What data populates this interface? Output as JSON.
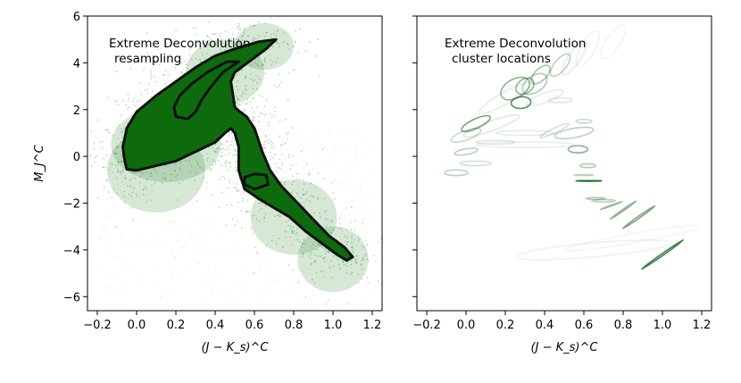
{
  "chart_data": [
    {
      "type": "scatter",
      "subtype": "density-contour",
      "annotation_line1": "Extreme Deconvolution",
      "annotation_line2": "resampling",
      "xlabel": "(J − K_s)^C",
      "ylabel": "M_J^C",
      "xlim": [
        -0.25,
        1.25
      ],
      "ylim": [
        6,
        -6.6
      ],
      "xticks": [
        -0.2,
        0.0,
        0.2,
        0.4,
        0.6,
        0.8,
        1.0,
        1.2
      ],
      "xtick_labels": [
        "−0.2",
        "0.0",
        "0.2",
        "0.4",
        "0.6",
        "0.8",
        "1.0",
        "1.2"
      ],
      "yticks": [
        -6,
        -4,
        -2,
        0,
        2,
        4,
        6
      ],
      "ytick_labels": [
        "−6",
        "−4",
        "−2",
        "0",
        "2",
        "4",
        "6"
      ],
      "point_color": "#1a7a1a",
      "fill_color": "#0d6b0d",
      "contour_color": "#111111",
      "contours": [
        {
          "name": "outer",
          "points": [
            [
              -0.05,
              -0.55
            ],
            [
              0.0,
              -0.6
            ],
            [
              0.1,
              -0.4
            ],
            [
              0.2,
              -0.2
            ],
            [
              0.3,
              0.2
            ],
            [
              0.4,
              0.6
            ],
            [
              0.45,
              1.0
            ],
            [
              0.48,
              1.2
            ],
            [
              0.5,
              1.0
            ],
            [
              0.52,
              0.4
            ],
            [
              0.52,
              -0.6
            ],
            [
              0.55,
              -1.4
            ],
            [
              0.62,
              -1.8
            ],
            [
              0.7,
              -2.2
            ],
            [
              0.78,
              -2.6
            ],
            [
              0.86,
              -3.2
            ],
            [
              0.94,
              -3.7
            ],
            [
              1.02,
              -4.2
            ],
            [
              1.07,
              -4.45
            ],
            [
              1.1,
              -4.3
            ],
            [
              1.06,
              -3.9
            ],
            [
              0.98,
              -3.4
            ],
            [
              0.9,
              -2.7
            ],
            [
              0.82,
              -2.0
            ],
            [
              0.74,
              -1.3
            ],
            [
              0.68,
              -0.6
            ],
            [
              0.64,
              0.2
            ],
            [
              0.6,
              1.2
            ],
            [
              0.56,
              1.7
            ],
            [
              0.52,
              1.95
            ],
            [
              0.5,
              2.1
            ],
            [
              0.48,
              3.2
            ],
            [
              0.5,
              3.6
            ],
            [
              0.58,
              4.1
            ],
            [
              0.66,
              4.6
            ],
            [
              0.71,
              5.0
            ],
            [
              0.62,
              4.9
            ],
            [
              0.5,
              4.6
            ],
            [
              0.4,
              4.3
            ],
            [
              0.3,
              3.8
            ],
            [
              0.2,
              3.2
            ],
            [
              0.1,
              2.6
            ],
            [
              0.0,
              1.9
            ],
            [
              -0.05,
              1.2
            ],
            [
              -0.07,
              0.4
            ],
            [
              -0.06,
              -0.2
            ],
            [
              -0.05,
              -0.55
            ]
          ]
        },
        {
          "name": "inner-bottom",
          "points": [
            [
              0.2,
              1.7
            ],
            [
              0.26,
              1.6
            ],
            [
              0.3,
              1.9
            ],
            [
              0.33,
              2.4
            ],
            [
              0.38,
              3.0
            ],
            [
              0.44,
              3.6
            ],
            [
              0.52,
              4.05
            ],
            [
              0.46,
              4.05
            ],
            [
              0.36,
              3.6
            ],
            [
              0.28,
              3.1
            ],
            [
              0.22,
              2.6
            ],
            [
              0.19,
              2.1
            ],
            [
              0.2,
              1.7
            ]
          ]
        },
        {
          "name": "inner-clump",
          "points": [
            [
              0.55,
              -1.2
            ],
            [
              0.6,
              -1.4
            ],
            [
              0.67,
              -1.2
            ],
            [
              0.66,
              -0.8
            ],
            [
              0.6,
              -0.75
            ],
            [
              0.55,
              -0.9
            ],
            [
              0.55,
              -1.2
            ]
          ]
        }
      ]
    },
    {
      "type": "scatter",
      "subtype": "gaussian-ellipses",
      "annotation_line1": "Extreme Deconvolution",
      "annotation_line2": "cluster locations",
      "xlabel": "(J − K_s)^C",
      "xlim": [
        -0.25,
        1.25
      ],
      "ylim": [
        6,
        -6.6
      ],
      "xticks": [
        -0.2,
        0.0,
        0.2,
        0.4,
        0.6,
        0.8,
        1.0,
        1.2
      ],
      "xtick_labels": [
        "−0.2",
        "0.0",
        "0.2",
        "0.4",
        "0.6",
        "0.8",
        "1.0",
        "1.2"
      ],
      "ellipse_color": "#1f6b2a",
      "ellipses": [
        {
          "cx": 0.65,
          "cy": -4.0,
          "rx": 0.4,
          "ry": 0.3,
          "angle": -5,
          "opacity": 0.08
        },
        {
          "cx": 0.85,
          "cy": -3.5,
          "rx": 0.35,
          "ry": 0.2,
          "angle": -10,
          "opacity": 0.06
        },
        {
          "cx": 1.0,
          "cy": -4.2,
          "rx": 0.13,
          "ry": 0.04,
          "angle": -35,
          "opacity": 0.85
        },
        {
          "cx": 0.88,
          "cy": -2.6,
          "rx": 0.1,
          "ry": 0.04,
          "angle": -35,
          "opacity": 0.6
        },
        {
          "cx": 0.8,
          "cy": -2.3,
          "rx": 0.08,
          "ry": 0.03,
          "angle": -35,
          "opacity": 0.5
        },
        {
          "cx": 0.74,
          "cy": -2.1,
          "rx": 0.06,
          "ry": 0.02,
          "angle": -20,
          "opacity": 0.45
        },
        {
          "cx": 0.66,
          "cy": -1.8,
          "rx": 0.05,
          "ry": 0.04,
          "angle": 0,
          "opacity": 0.35
        },
        {
          "cx": 0.7,
          "cy": -1.9,
          "rx": 0.06,
          "ry": 0.05,
          "angle": 0,
          "opacity": 0.3
        },
        {
          "cx": 0.63,
          "cy": -1.05,
          "rx": 0.06,
          "ry": 0.01,
          "angle": 0,
          "opacity": 0.95
        },
        {
          "cx": 0.62,
          "cy": -1.05,
          "rx": 0.06,
          "ry": 0.005,
          "angle": 0,
          "opacity": 0.95
        },
        {
          "cx": 0.6,
          "cy": -0.8,
          "rx": 0.05,
          "ry": 0.02,
          "angle": 0,
          "opacity": 0.3
        },
        {
          "cx": 0.57,
          "cy": 0.3,
          "rx": 0.05,
          "ry": 0.15,
          "angle": 0,
          "opacity": 0.5
        },
        {
          "cx": 0.62,
          "cy": -0.4,
          "rx": 0.04,
          "ry": 0.08,
          "angle": 0,
          "opacity": 0.35
        },
        {
          "cx": 0.3,
          "cy": 0.5,
          "rx": 0.25,
          "ry": 0.12,
          "angle": 0,
          "opacity": 0.1
        },
        {
          "cx": 0.55,
          "cy": 1.0,
          "rx": 0.1,
          "ry": 0.2,
          "angle": -10,
          "opacity": 0.3
        },
        {
          "cx": 0.6,
          "cy": 1.5,
          "rx": 0.04,
          "ry": 0.08,
          "angle": 0,
          "opacity": 0.25
        },
        {
          "cx": 0.45,
          "cy": 1.1,
          "rx": 0.08,
          "ry": 0.1,
          "angle": -25,
          "opacity": 0.2
        },
        {
          "cx": 0.0,
          "cy": 0.2,
          "rx": 0.06,
          "ry": 0.12,
          "angle": -10,
          "opacity": 0.3
        },
        {
          "cx": -0.05,
          "cy": -0.7,
          "rx": 0.06,
          "ry": 0.12,
          "angle": 0,
          "opacity": 0.3
        },
        {
          "cx": 0.05,
          "cy": -0.3,
          "rx": 0.08,
          "ry": 0.1,
          "angle": 0,
          "opacity": 0.2
        },
        {
          "cx": 0.0,
          "cy": 0.9,
          "rx": 0.08,
          "ry": 0.2,
          "angle": -20,
          "opacity": 0.25
        },
        {
          "cx": 0.05,
          "cy": 1.4,
          "rx": 0.08,
          "ry": 0.2,
          "angle": -25,
          "opacity": 0.6
        },
        {
          "cx": 0.13,
          "cy": 1.3,
          "rx": 0.15,
          "ry": 0.2,
          "angle": -20,
          "opacity": 0.15
        },
        {
          "cx": 0.3,
          "cy": 1.0,
          "rx": 0.15,
          "ry": 0.1,
          "angle": 0,
          "opacity": 0.12
        },
        {
          "cx": 0.15,
          "cy": 0.6,
          "rx": 0.1,
          "ry": 0.08,
          "angle": 0,
          "opacity": 0.15
        },
        {
          "cx": 0.28,
          "cy": 2.3,
          "rx": 0.05,
          "ry": 0.25,
          "angle": -5,
          "opacity": 0.75
        },
        {
          "cx": 0.25,
          "cy": 2.9,
          "rx": 0.08,
          "ry": 0.4,
          "angle": -30,
          "opacity": 0.5
        },
        {
          "cx": 0.3,
          "cy": 3.0,
          "rx": 0.05,
          "ry": 0.3,
          "angle": -35,
          "opacity": 0.5
        },
        {
          "cx": 0.35,
          "cy": 3.1,
          "rx": 0.07,
          "ry": 0.35,
          "angle": -35,
          "opacity": 0.35
        },
        {
          "cx": 0.38,
          "cy": 3.5,
          "rx": 0.06,
          "ry": 0.25,
          "angle": -45,
          "opacity": 0.4
        },
        {
          "cx": 0.48,
          "cy": 3.9,
          "rx": 0.07,
          "ry": 0.25,
          "angle": -50,
          "opacity": 0.3
        },
        {
          "cx": 0.2,
          "cy": 2.5,
          "rx": 0.15,
          "ry": 0.25,
          "angle": -30,
          "opacity": 0.12
        },
        {
          "cx": 0.4,
          "cy": 2.5,
          "rx": 0.1,
          "ry": 0.2,
          "angle": -20,
          "opacity": 0.12
        },
        {
          "cx": 0.48,
          "cy": 2.4,
          "rx": 0.06,
          "ry": 0.1,
          "angle": 0,
          "opacity": 0.15
        },
        {
          "cx": 0.55,
          "cy": 4.2,
          "rx": 0.1,
          "ry": 0.25,
          "angle": -55,
          "opacity": 0.12
        },
        {
          "cx": 0.62,
          "cy": 4.6,
          "rx": 0.1,
          "ry": 0.3,
          "angle": -60,
          "opacity": 0.08
        },
        {
          "cx": 0.75,
          "cy": 4.9,
          "rx": 0.1,
          "ry": 0.3,
          "angle": -55,
          "opacity": 0.06
        }
      ]
    }
  ]
}
